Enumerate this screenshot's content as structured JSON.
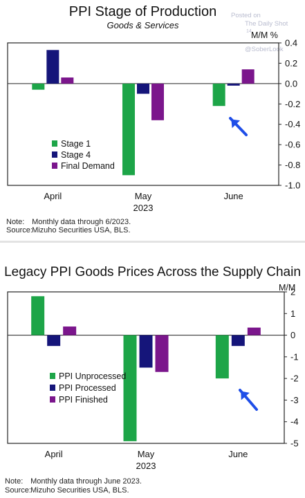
{
  "chart_data": [
    {
      "type": "bar",
      "title": "PPI Stage of Production",
      "subtitle": "Goods & Services",
      "ylabel": "M/M %",
      "categories": [
        "April",
        "May",
        "June"
      ],
      "year_label": "2023",
      "series": [
        {
          "name": "Stage 1",
          "values": [
            -0.06,
            -0.9,
            -0.22
          ]
        },
        {
          "name": "Stage 4",
          "values": [
            0.33,
            -0.1,
            -0.02
          ]
        },
        {
          "name": "Final Demand",
          "values": [
            0.06,
            -0.36,
            0.14
          ]
        }
      ],
      "ylim": [
        -1.0,
        0.4
      ],
      "yticks": [
        0.4,
        0.2,
        0.0,
        -0.2,
        -0.4,
        -0.6,
        -0.8,
        -1.0
      ],
      "ytick_labels": [
        "0.4",
        "0.2",
        "0.0",
        "-0.2",
        "-0.4",
        "-0.6",
        "-0.8",
        "-1.0"
      ],
      "legend_position": "lower-left",
      "note": "Monthly data through 6/2023.",
      "source": "Mizuho Securities USA, BLS.",
      "annotation": "arrow pointing to June Stage 1 bar"
    },
    {
      "type": "bar",
      "title": "Legacy PPI Goods Prices Across the Supply Chain",
      "ylabel": "M/M",
      "categories": [
        "April",
        "May",
        "June"
      ],
      "year_label": "2023",
      "series": [
        {
          "name": "PPI Unprocessed",
          "values": [
            1.8,
            -4.9,
            -2.0
          ]
        },
        {
          "name": "PPI Processed",
          "values": [
            -0.5,
            -1.5,
            -0.5
          ]
        },
        {
          "name": "PPI Finished",
          "values": [
            0.4,
            -1.7,
            0.35
          ]
        }
      ],
      "ylim": [
        -5,
        2
      ],
      "yticks": [
        2,
        1,
        0,
        -1,
        -2,
        -3,
        -4,
        -5
      ],
      "ytick_labels": [
        "2",
        "1",
        "0",
        "-1",
        "-2",
        "-3",
        "-4",
        "-5"
      ],
      "legend_position": "lower-left",
      "note": "Monthly data through June 2023.",
      "source": "Mizuho Securities USA, BLS.",
      "annotation": "arrow pointing to June PPI Unprocessed bar"
    }
  ],
  "labels": {
    "note_key": "Note:",
    "source_key": "Source:"
  },
  "watermark": {
    "posted_on": "Posted on",
    "site": "The Daily Shot",
    "date_fragment": "14",
    "handle": "@SoberLook"
  },
  "colors": {
    "green": "#1da548",
    "navy": "#15157a",
    "purple": "#7b168c",
    "arrow": "#1f4ee8",
    "axis": "#222222"
  }
}
